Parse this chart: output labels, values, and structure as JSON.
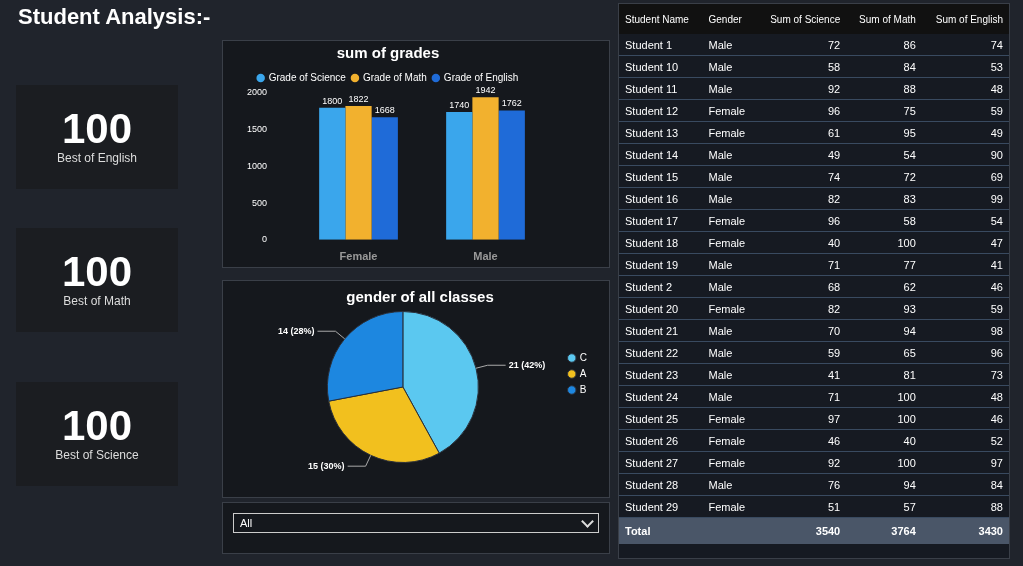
{
  "chart_data": [
    {
      "type": "other",
      "title": "Student Analysis:-",
      "categories": [
        "Best of English",
        "Best of Math",
        "Best of Science"
      ],
      "values": [
        100,
        100,
        100
      ],
      "data_labels": true,
      "annotations": [
        "All"
      ]
    },
    {
      "type": "bar",
      "title": "sum of grades",
      "categories": [
        "Female",
        "Male"
      ],
      "series": [
        {
          "name": "Grade of Science",
          "color": "#3aa6ec",
          "values": [
            1800,
            1740
          ]
        },
        {
          "name": "Grade of Math",
          "color": "#f2b12e",
          "values": [
            1822,
            1942
          ]
        },
        {
          "name": "Grade of English",
          "color": "#1f6bd8",
          "values": [
            1668,
            1762
          ]
        }
      ],
      "ylim": [
        0,
        2000
      ],
      "yticks": [
        0,
        500,
        1000,
        1500,
        2000
      ],
      "grid": false,
      "legend": "top",
      "data_labels": true
    },
    {
      "type": "pie",
      "title": "gender of all classes",
      "categories": [
        "C",
        "A",
        "B"
      ],
      "values": [
        21,
        15,
        14
      ],
      "colors": [
        "#5bc8f0",
        "#f2c01e",
        "#1d87e0"
      ],
      "value_labels": [
        "21 (42%)",
        "15 (30%)",
        "14 (28%)"
      ],
      "legend": "right"
    },
    {
      "type": "other",
      "categories": [
        "Student Name",
        "Gender",
        "Sum of Science",
        "Sum of Math",
        "Sum of English"
      ],
      "y_categories": [
        "Student 1",
        "Student 10",
        "Student 11",
        "Student 12",
        "Student 13",
        "Student 14",
        "Student 15",
        "Student 16",
        "Student 17",
        "Student 18",
        "Student 19",
        "Student 2",
        "Student 20",
        "Student 21",
        "Student 22",
        "Student 23",
        "Student 24",
        "Student 25",
        "Student 26",
        "Student 27",
        "Student 28",
        "Student 29",
        "Total"
      ],
      "cell_labels": [
        [
          "Male",
          "72",
          "86",
          "74"
        ],
        [
          "Male",
          "58",
          "84",
          "53"
        ],
        [
          "Male",
          "92",
          "88",
          "48"
        ],
        [
          "Female",
          "96",
          "75",
          "59"
        ],
        [
          "Female",
          "61",
          "95",
          "49"
        ],
        [
          "Male",
          "49",
          "54",
          "90"
        ],
        [
          "Male",
          "74",
          "72",
          "69"
        ],
        [
          "Male",
          "82",
          "83",
          "99"
        ],
        [
          "Female",
          "96",
          "58",
          "54"
        ],
        [
          "Female",
          "40",
          "100",
          "47"
        ],
        [
          "Male",
          "71",
          "77",
          "41"
        ],
        [
          "Male",
          "68",
          "62",
          "46"
        ],
        [
          "Female",
          "82",
          "93",
          "59"
        ],
        [
          "Male",
          "70",
          "94",
          "98"
        ],
        [
          "Male",
          "59",
          "65",
          "96"
        ],
        [
          "Male",
          "41",
          "81",
          "73"
        ],
        [
          "Male",
          "71",
          "100",
          "48"
        ],
        [
          "Female",
          "97",
          "100",
          "46"
        ],
        [
          "Female",
          "46",
          "40",
          "52"
        ],
        [
          "Female",
          "92",
          "100",
          "97"
        ],
        [
          "Male",
          "76",
          "94",
          "84"
        ],
        [
          "Female",
          "51",
          "57",
          "88"
        ],
        [
          null,
          "3540",
          "3764",
          "3430"
        ]
      ]
    }
  ]
}
